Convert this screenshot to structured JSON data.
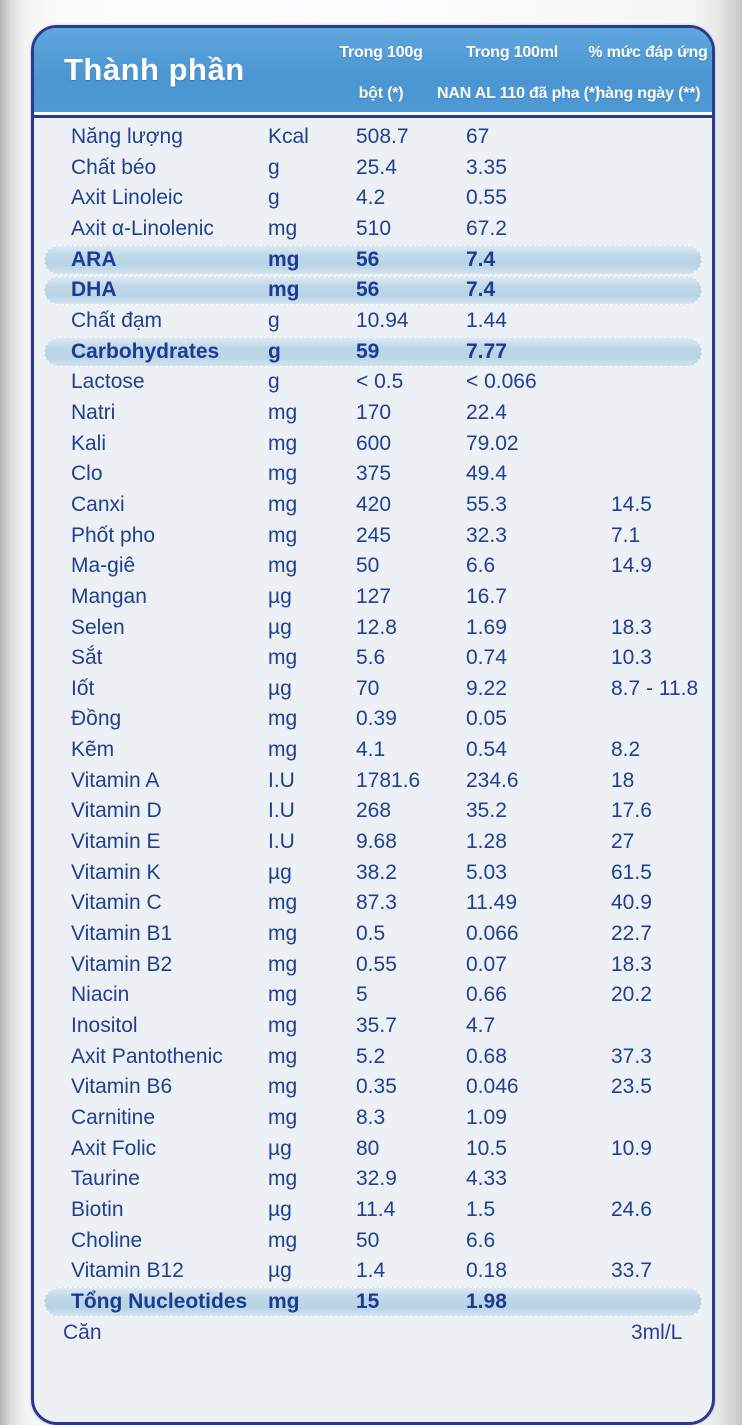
{
  "header": {
    "title": "Thành phần",
    "columns": [
      {
        "line1": "Trong 100g",
        "line2": "bột (*)"
      },
      {
        "line1": "Trong 100ml",
        "line2": "NAN AL 110 đã pha (*)"
      },
      {
        "line1": "% mức đáp ứng",
        "line2": "hàng ngày (**)"
      }
    ]
  },
  "table": {
    "rows": [
      {
        "name": "Năng lượng",
        "unit": "Kcal",
        "per100g": "508.7",
        "per100ml": "67",
        "daily": "",
        "highlight": false
      },
      {
        "name": "Chất béo",
        "unit": "g",
        "per100g": "25.4",
        "per100ml": "3.35",
        "daily": "",
        "highlight": false
      },
      {
        "name": "Axit Linoleic",
        "unit": "g",
        "per100g": "4.2",
        "per100ml": "0.55",
        "daily": "",
        "highlight": false
      },
      {
        "name": "Axit α-Linolenic",
        "unit": "mg",
        "per100g": "510",
        "per100ml": "67.2",
        "daily": "",
        "highlight": false
      },
      {
        "name": "ARA",
        "unit": "mg",
        "per100g": "56",
        "per100ml": "7.4",
        "daily": "",
        "highlight": true
      },
      {
        "name": "DHA",
        "unit": "mg",
        "per100g": "56",
        "per100ml": "7.4",
        "daily": "",
        "highlight": true
      },
      {
        "name": "Chất đạm",
        "unit": "g",
        "per100g": "10.94",
        "per100ml": "1.44",
        "daily": "",
        "highlight": false
      },
      {
        "name": "Carbohydrates",
        "unit": "g",
        "per100g": "59",
        "per100ml": "7.77",
        "daily": "",
        "highlight": true
      },
      {
        "name": "Lactose",
        "unit": "g",
        "per100g": "< 0.5",
        "per100ml": "< 0.066",
        "daily": "",
        "highlight": false
      },
      {
        "name": "Natri",
        "unit": "mg",
        "per100g": "170",
        "per100ml": "22.4",
        "daily": "",
        "highlight": false
      },
      {
        "name": "Kali",
        "unit": "mg",
        "per100g": "600",
        "per100ml": "79.02",
        "daily": "",
        "highlight": false
      },
      {
        "name": "Clo",
        "unit": "mg",
        "per100g": "375",
        "per100ml": "49.4",
        "daily": "",
        "highlight": false
      },
      {
        "name": "Canxi",
        "unit": "mg",
        "per100g": "420",
        "per100ml": "55.3",
        "daily": "14.5",
        "highlight": false
      },
      {
        "name": "Phốt pho",
        "unit": "mg",
        "per100g": "245",
        "per100ml": "32.3",
        "daily": "7.1",
        "highlight": false
      },
      {
        "name": "Ma-giê",
        "unit": "mg",
        "per100g": "50",
        "per100ml": "6.6",
        "daily": "14.9",
        "highlight": false
      },
      {
        "name": "Mangan",
        "unit": "µg",
        "per100g": "127",
        "per100ml": "16.7",
        "daily": "",
        "highlight": false
      },
      {
        "name": "Selen",
        "unit": "µg",
        "per100g": "12.8",
        "per100ml": "1.69",
        "daily": "18.3",
        "highlight": false
      },
      {
        "name": "Sắt",
        "unit": "mg",
        "per100g": "5.6",
        "per100ml": "0.74",
        "daily": "10.3",
        "highlight": false
      },
      {
        "name": "Iốt",
        "unit": "µg",
        "per100g": "70",
        "per100ml": "9.22",
        "daily": "8.7 - 11.8",
        "highlight": false
      },
      {
        "name": "Đồng",
        "unit": "mg",
        "per100g": "0.39",
        "per100ml": "0.05",
        "daily": "",
        "highlight": false
      },
      {
        "name": "Kẽm",
        "unit": "mg",
        "per100g": "4.1",
        "per100ml": "0.54",
        "daily": "8.2",
        "highlight": false
      },
      {
        "name": "Vitamin A",
        "unit": "I.U",
        "per100g": "1781.6",
        "per100ml": "234.6",
        "daily": "18",
        "highlight": false
      },
      {
        "name": "Vitamin D",
        "unit": "I.U",
        "per100g": "268",
        "per100ml": "35.2",
        "daily": "17.6",
        "highlight": false
      },
      {
        "name": "Vitamin E",
        "unit": "I.U",
        "per100g": "9.68",
        "per100ml": "1.28",
        "daily": "27",
        "highlight": false
      },
      {
        "name": "Vitamin K",
        "unit": "µg",
        "per100g": "38.2",
        "per100ml": "5.03",
        "daily": "61.5",
        "highlight": false
      },
      {
        "name": "Vitamin C",
        "unit": "mg",
        "per100g": "87.3",
        "per100ml": "11.49",
        "daily": "40.9",
        "highlight": false
      },
      {
        "name": "Vitamin B1",
        "unit": "mg",
        "per100g": "0.5",
        "per100ml": "0.066",
        "daily": "22.7",
        "highlight": false
      },
      {
        "name": "Vitamin B2",
        "unit": "mg",
        "per100g": "0.55",
        "per100ml": "0.07",
        "daily": "18.3",
        "highlight": false
      },
      {
        "name": "Niacin",
        "unit": "mg",
        "per100g": "5",
        "per100ml": "0.66",
        "daily": "20.2",
        "highlight": false
      },
      {
        "name": "Inositol",
        "unit": "mg",
        "per100g": "35.7",
        "per100ml": "4.7",
        "daily": "",
        "highlight": false
      },
      {
        "name": "Axit Pantothenic",
        "unit": "mg",
        "per100g": "5.2",
        "per100ml": "0.68",
        "daily": "37.3",
        "highlight": false
      },
      {
        "name": "Vitamin B6",
        "unit": "mg",
        "per100g": "0.35",
        "per100ml": "0.046",
        "daily": "23.5",
        "highlight": false
      },
      {
        "name": "Carnitine",
        "unit": "mg",
        "per100g": "8.3",
        "per100ml": "1.09",
        "daily": "",
        "highlight": false
      },
      {
        "name": "Axit Folic",
        "unit": "µg",
        "per100g": "80",
        "per100ml": "10.5",
        "daily": "10.9",
        "highlight": false
      },
      {
        "name": "Taurine",
        "unit": "mg",
        "per100g": "32.9",
        "per100ml": "4.33",
        "daily": "",
        "highlight": false
      },
      {
        "name": "Biotin",
        "unit": "µg",
        "per100g": "11.4",
        "per100ml": "1.5",
        "daily": "24.6",
        "highlight": false
      },
      {
        "name": "Choline",
        "unit": "mg",
        "per100g": "50",
        "per100ml": "6.6",
        "daily": "",
        "highlight": false
      },
      {
        "name": "Vitamin B12",
        "unit": "µg",
        "per100g": "1.4",
        "per100ml": "0.18",
        "daily": "33.7",
        "highlight": false
      },
      {
        "name": "Tổng Nucleotides",
        "unit": "mg",
        "per100g": "15",
        "per100ml": "1.98",
        "daily": "",
        "highlight": true
      }
    ]
  },
  "footnote_partial": {
    "left": "Căn",
    "right": "3ml/L"
  },
  "colors": {
    "header_blue": "#4d99d4",
    "border_navy": "#2c3a8e",
    "text_navy": "#21418f",
    "highlight_pill": "#bed7e8",
    "body_background": "#edf1f6"
  }
}
